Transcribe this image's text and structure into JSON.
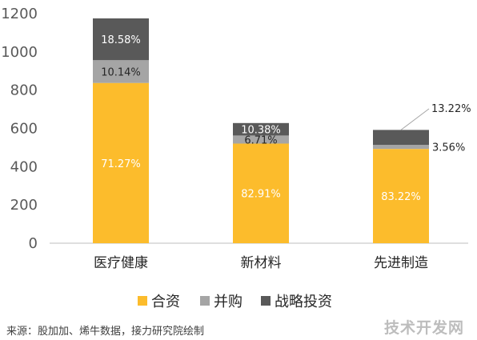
{
  "chart_data": {
    "type": "bar",
    "stacked": true,
    "categories": [
      "医疗健康",
      "新材料",
      "先进制造"
    ],
    "totals": [
      1175,
      628,
      592
    ],
    "series": [
      {
        "name": "合资",
        "color": "#FCBC2C",
        "percent_labels": [
          "71.27%",
          "82.91%",
          "83.22%"
        ]
      },
      {
        "name": "并购",
        "color": "#A5A5A5",
        "percent_labels": [
          "10.14%",
          "6.71%",
          "3.56%"
        ]
      },
      {
        "name": "战略投资",
        "color": "#595959",
        "percent_labels": [
          "18.58%",
          "10.38%",
          "13.22%"
        ]
      }
    ],
    "share": [
      [
        71.27,
        10.14,
        18.58
      ],
      [
        82.91,
        6.71,
        10.38
      ],
      [
        83.22,
        3.56,
        13.22
      ]
    ],
    "ylim": [
      0,
      1200
    ],
    "yticks": [
      "0",
      "200",
      "400",
      "600",
      "800",
      "1000",
      "1200"
    ],
    "grid": false,
    "legend_position": "bottom"
  },
  "source": "来源：股加加、烯牛数据，接力研究院绘制",
  "watermark": "技术开发网"
}
